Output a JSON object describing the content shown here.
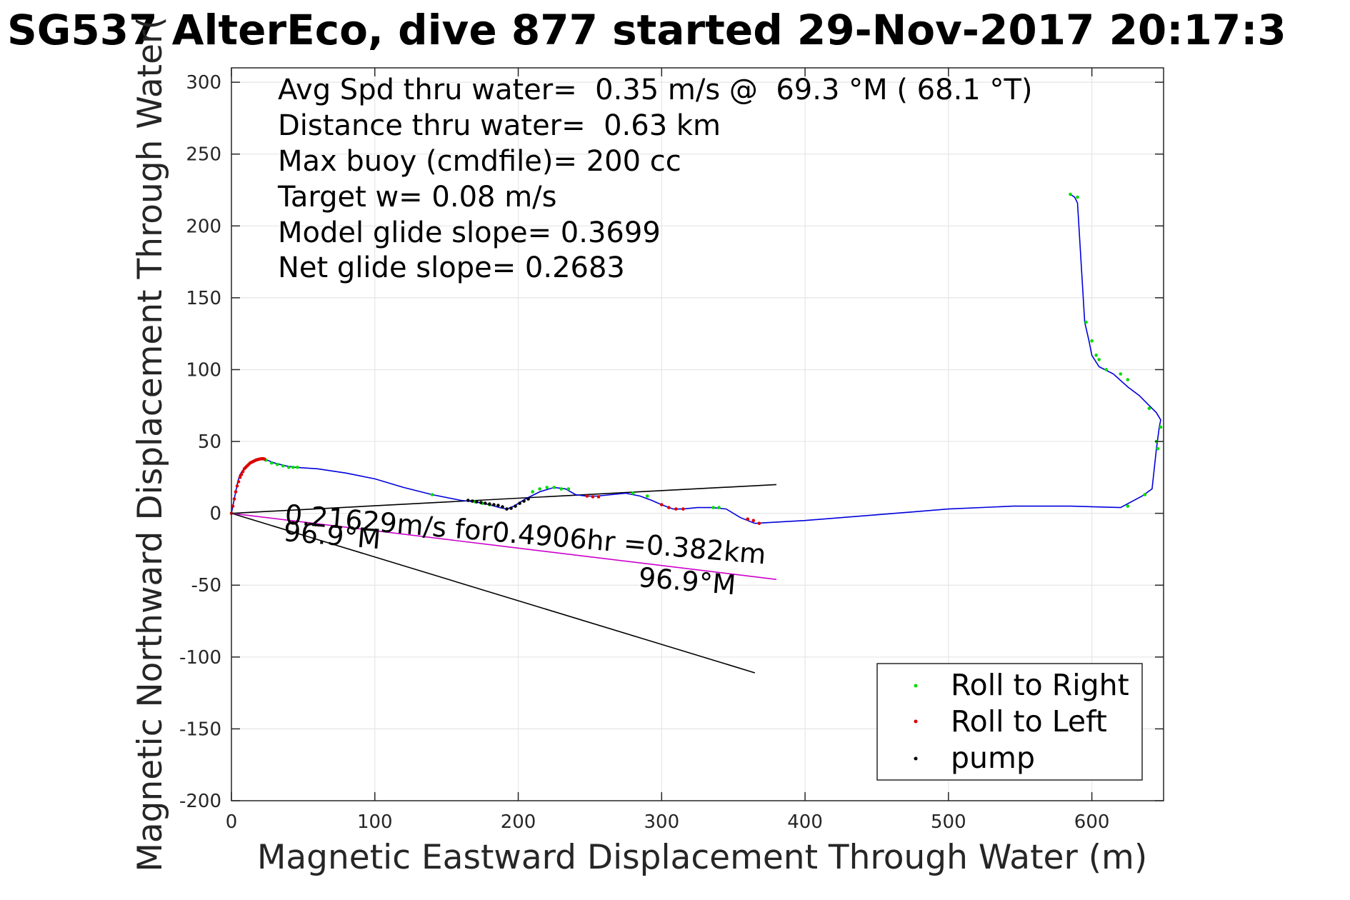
{
  "chart_data": {
    "type": "line",
    "title": "SG537 AlterEco, dive 877 started 29-Nov-2017 20:17:3",
    "xlabel": "Magnetic Eastward Displacement Through Water (m)",
    "ylabel": "Magnetic Northward Displacement Through Water(",
    "xlim": [
      0,
      650
    ],
    "ylim": [
      -200,
      310
    ],
    "x_ticks": [
      0,
      100,
      200,
      300,
      400,
      500,
      600
    ],
    "y_ticks": [
      -200,
      -150,
      -100,
      -50,
      0,
      50,
      100,
      150,
      200,
      250,
      300
    ],
    "grid": true,
    "legend_position": "bottom-right",
    "info_lines": [
      "Avg Spd thru water=  0.35 m/s @  69.3 °M ( 68.1 °T)",
      "Distance thru water=  0.63 km",
      "Max buoy (cmdfile)= 200 cc",
      "Target w= 0.08 m/s",
      "Model glide slope= 0.3699",
      "Net glide slope= 0.2683"
    ],
    "annotations": {
      "current": "0.21629m/s for0.4906hr =0.382km",
      "heading1": "96.9°M",
      "heading2": "96.9°M"
    },
    "colors": {
      "track": "#0000dd",
      "roll_right": "#00dd00",
      "roll_left": "#dd0000",
      "pump": "#000000",
      "current_line": "#cc00cc"
    },
    "series": [
      {
        "name": "track",
        "x": [
          0,
          1,
          2,
          3,
          4,
          5,
          6,
          8,
          10,
          13,
          16,
          19,
          22,
          25,
          30,
          38,
          45,
          60,
          80,
          100,
          120,
          140,
          160,
          170,
          180,
          187,
          192,
          197,
          205,
          215,
          225,
          233,
          240,
          247,
          255,
          265,
          275,
          285,
          293,
          300,
          308,
          315,
          325,
          335,
          345,
          355,
          365,
          400,
          450,
          500,
          545,
          585,
          620,
          635,
          642,
          645,
          647,
          648,
          645,
          640,
          633,
          625,
          615,
          605,
          600,
          598,
          595,
          590,
          588,
          585
        ],
        "y": [
          0,
          5,
          10,
          15,
          20,
          24,
          27,
          30,
          33,
          35,
          37,
          38,
          38,
          37,
          35,
          33,
          32,
          31,
          28,
          24,
          18,
          13,
          9,
          8,
          6,
          4,
          3,
          5,
          10,
          15,
          18,
          17,
          13,
          12,
          12,
          13,
          14,
          12,
          9,
          6,
          3,
          3,
          4,
          4,
          3,
          -3,
          -7,
          -5,
          -1,
          3,
          5,
          5,
          4,
          12,
          17,
          45,
          60,
          65,
          70,
          75,
          82,
          88,
          97,
          102,
          110,
          120,
          133,
          216,
          220,
          222
        ]
      },
      {
        "name": "Roll to Right",
        "x": [
          24,
          28,
          32,
          36,
          40,
          43,
          46,
          140,
          170,
          175,
          180,
          210,
          215,
          220,
          225,
          230,
          235,
          280,
          290,
          336,
          340,
          585,
          590,
          596,
          600,
          603,
          605,
          610,
          620,
          625,
          640,
          645,
          648,
          646,
          637,
          625
        ],
        "y": [
          37,
          35,
          34,
          33,
          32,
          32,
          32,
          13,
          8,
          7,
          6,
          15,
          17,
          18,
          18,
          17,
          17,
          14,
          12,
          4,
          4,
          222,
          220,
          133,
          120,
          110,
          107,
          100,
          97,
          93,
          73,
          50,
          60,
          45,
          13,
          5
        ]
      },
      {
        "name": "Roll to Left",
        "x": [
          0,
          1,
          2,
          3,
          4,
          5,
          6,
          7,
          8,
          9,
          10,
          11,
          12,
          13,
          14,
          15,
          16,
          17,
          18,
          19,
          20,
          21,
          22,
          23,
          248,
          252,
          256,
          300,
          305,
          310,
          315,
          360,
          364,
          368
        ],
        "y": [
          0,
          5,
          10,
          15,
          19,
          22,
          25,
          27,
          29,
          31,
          32,
          33,
          34,
          35,
          35.5,
          36,
          36.5,
          37,
          37.3,
          37.6,
          37.8,
          38,
          38,
          37.8,
          12,
          11.5,
          11.5,
          6,
          4,
          3,
          3,
          -4,
          -5,
          -7
        ]
      },
      {
        "name": "pump",
        "x": [
          165,
          168,
          171,
          174,
          177,
          180,
          183,
          186,
          189,
          192,
          195,
          198,
          201,
          204,
          207
        ],
        "y": [
          9,
          8.5,
          8,
          7.5,
          7,
          6.5,
          6,
          5.5,
          4.5,
          3,
          3.5,
          5,
          7,
          8.5,
          10
        ]
      }
    ]
  }
}
